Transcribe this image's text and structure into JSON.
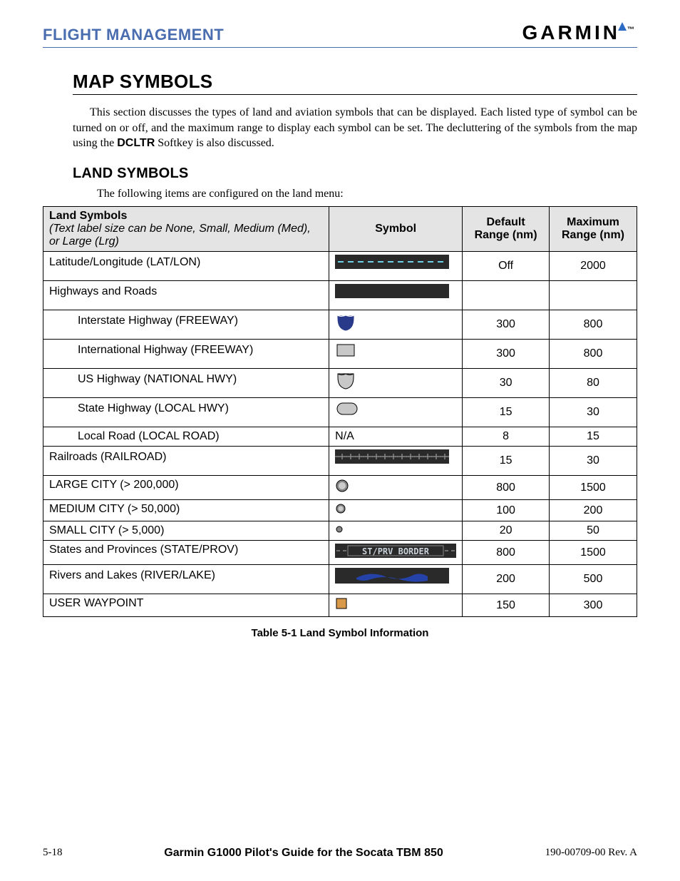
{
  "header": {
    "section": "FLIGHT MANAGEMENT",
    "brand": "GARMIN",
    "brand_accent": "#2d6bc4"
  },
  "title": "MAP SYMBOLS",
  "intro_html": "This section discusses the types of land and aviation symbols that can be displayed. Each listed type of symbol can be turned on or off, and the maximum range to display each symbol can be set. The decluttering of the symbols from the map using the <b>DCLTR</b> Softkey is also discussed.",
  "subheading": "LAND SYMBOLS",
  "subintro": "The following items are configured on the land menu:",
  "table": {
    "header": {
      "c1": "Land Symbols",
      "c1_note": "(Text label size can be None, Small, Medium (Med), or Large (Lrg)",
      "c2": "Symbol",
      "c3": "Default Range (nm)",
      "c4": "Maximum Range (nm)"
    },
    "rows": [
      {
        "label": "Latitude/Longitude (LAT/LON)",
        "indent": false,
        "symbol": "latlon",
        "def": "Off",
        "max": "2000",
        "tall": true
      },
      {
        "label": "Highways and Roads",
        "indent": false,
        "symbol": "solidline",
        "def": "",
        "max": "",
        "tall": true
      },
      {
        "label": "Interstate Highway (FREEWAY)",
        "indent": true,
        "symbol": "shield-blue",
        "def": "300",
        "max": "800",
        "tall": true
      },
      {
        "label": "International Highway (FREEWAY)",
        "indent": true,
        "symbol": "rect-grey",
        "def": "300",
        "max": "800",
        "tall": true
      },
      {
        "label": "US Highway (NATIONAL HWY)",
        "indent": true,
        "symbol": "shield-grey",
        "def": "30",
        "max": "80",
        "tall": true
      },
      {
        "label": "State Highway (LOCAL HWY)",
        "indent": true,
        "symbol": "rounded-grey",
        "def": "15",
        "max": "30",
        "tall": true
      },
      {
        "label": "Local Road (LOCAL ROAD)",
        "indent": true,
        "symbol": "na",
        "def": "8",
        "max": "15"
      },
      {
        "label": "Railroads (RAILROAD)",
        "indent": false,
        "symbol": "railroad",
        "def": "15",
        "max": "30",
        "tall": true
      },
      {
        "label": "LARGE CITY (> 200,000)",
        "indent": false,
        "symbol": "city-lg",
        "def": "800",
        "max": "1500"
      },
      {
        "label": "MEDIUM CITY (> 50,000)",
        "indent": false,
        "symbol": "city-md",
        "def": "100",
        "max": "200"
      },
      {
        "label": "SMALL CITY (> 5,000)",
        "indent": false,
        "symbol": "city-sm",
        "def": "20",
        "max": "50"
      },
      {
        "label": "States and Provinces (STATE/PROV)",
        "indent": false,
        "symbol": "stprv",
        "def": "800",
        "max": "1500"
      },
      {
        "label": "Rivers and Lakes (RIVER/LAKE)",
        "indent": false,
        "symbol": "river",
        "def": "200",
        "max": "500",
        "tall": true
      },
      {
        "label": "USER WAYPOINT",
        "indent": false,
        "symbol": "waypoint",
        "def": "150",
        "max": "300"
      }
    ]
  },
  "caption": "Table 5-1  Land Symbol Information",
  "footer": {
    "left": "5-18",
    "center": "Garmin G1000 Pilot's Guide for the Socata TBM 850",
    "right": "190-00709-00  Rev. A"
  },
  "colors": {
    "dark_bg": "#2a2a2a",
    "cyan_dash": "#6fd0e8",
    "shield_blue": "#2a3a8a",
    "grey_fill": "#c8c8c8",
    "river_blue": "#2442a8",
    "waypoint": "#d89a4a",
    "stprv_text": "#c8d0d8"
  }
}
